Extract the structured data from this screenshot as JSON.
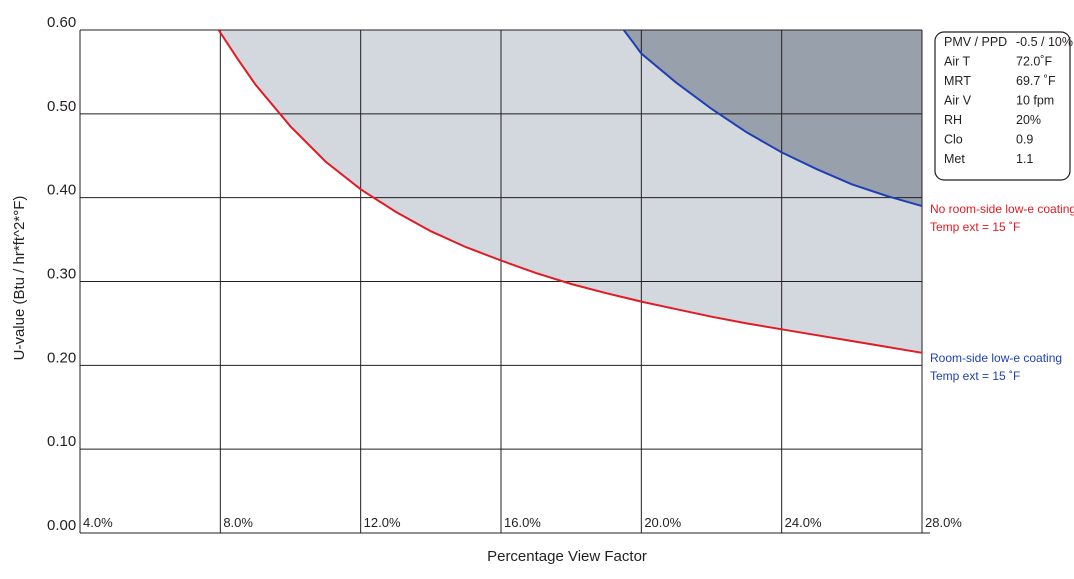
{
  "chart_data": {
    "type": "line",
    "title": "",
    "xlabel": "Percentage View Factor",
    "ylabel": "U-value (Btu / hr*ft^2*°F)",
    "xlim": [
      4,
      28
    ],
    "ylim": [
      0,
      0.6
    ],
    "grid": true,
    "x_ticks": [
      4,
      8,
      12,
      16,
      20,
      24,
      28
    ],
    "x_tick_labels": [
      "4.0%",
      "8.0%",
      "12.0%",
      "16.0%",
      "20.0%",
      "24.0%",
      "28.0%"
    ],
    "y_ticks": [
      0,
      0.1,
      0.2,
      0.3,
      0.4,
      0.5,
      0.6
    ],
    "y_tick_labels": [
      "0.00",
      "0.10",
      "0.20",
      "0.30",
      "0.40",
      "0.50",
      "0.60"
    ],
    "series": [
      {
        "name": "No room-side low-e coating",
        "label_lines": [
          "No room-side low-e coating",
          "Temp ext = 15 ˚F"
        ],
        "color": "#e01b24",
        "fill": "#d3d8de",
        "x": [
          7.95,
          8.5,
          9,
          10,
          11,
          12,
          13,
          14,
          15,
          16,
          17,
          18,
          19,
          20,
          21,
          22,
          23,
          24,
          25,
          26,
          27,
          28
        ],
        "y": [
          0.6,
          0.565,
          0.535,
          0.485,
          0.443,
          0.41,
          0.383,
          0.36,
          0.341,
          0.325,
          0.31,
          0.297,
          0.286,
          0.276,
          0.267,
          0.258,
          0.25,
          0.243,
          0.236,
          0.229,
          0.222,
          0.215
        ]
      },
      {
        "name": "Room-side low-e coating",
        "label_lines": [
          "Room-side low-e coating",
          "Temp ext = 15 ˚F"
        ],
        "color": "#1f3fb4",
        "fill": "#98a1ab",
        "x": [
          19.5,
          20,
          21,
          22,
          23,
          24,
          25,
          26,
          27,
          28
        ],
        "y": [
          0.6,
          0.572,
          0.537,
          0.506,
          0.478,
          0.454,
          0.434,
          0.416,
          0.402,
          0.39
        ]
      }
    ],
    "conditions": [
      {
        "label": "PMV / PPD",
        "value": "-0.5 / 10%"
      },
      {
        "label": "Air T",
        "value": "72.0˚F"
      },
      {
        "label": "MRT",
        "value": "69.7 ˚F"
      },
      {
        "label": "Air V",
        "value": "10 fpm"
      },
      {
        "label": "RH",
        "value": "20%"
      },
      {
        "label": "Clo",
        "value": "0.9"
      },
      {
        "label": "Met",
        "value": "1.1"
      }
    ]
  }
}
